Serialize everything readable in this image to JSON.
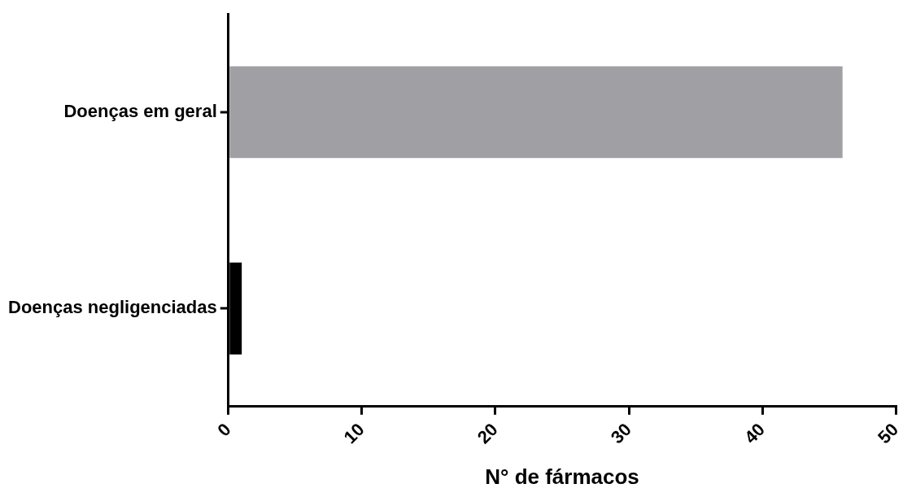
{
  "chart_data": {
    "type": "bar",
    "orientation": "horizontal",
    "xlabel": "N° de fármacos",
    "categories": [
      "Doenças em geral",
      "Doenças negligenciadas"
    ],
    "values": [
      46,
      1
    ],
    "colors": [
      "#a0a0a4",
      "#000000"
    ],
    "xlim": [
      0,
      50
    ],
    "xticks": [
      0,
      10,
      20,
      30,
      40,
      50
    ],
    "grid": false,
    "legend": false
  }
}
